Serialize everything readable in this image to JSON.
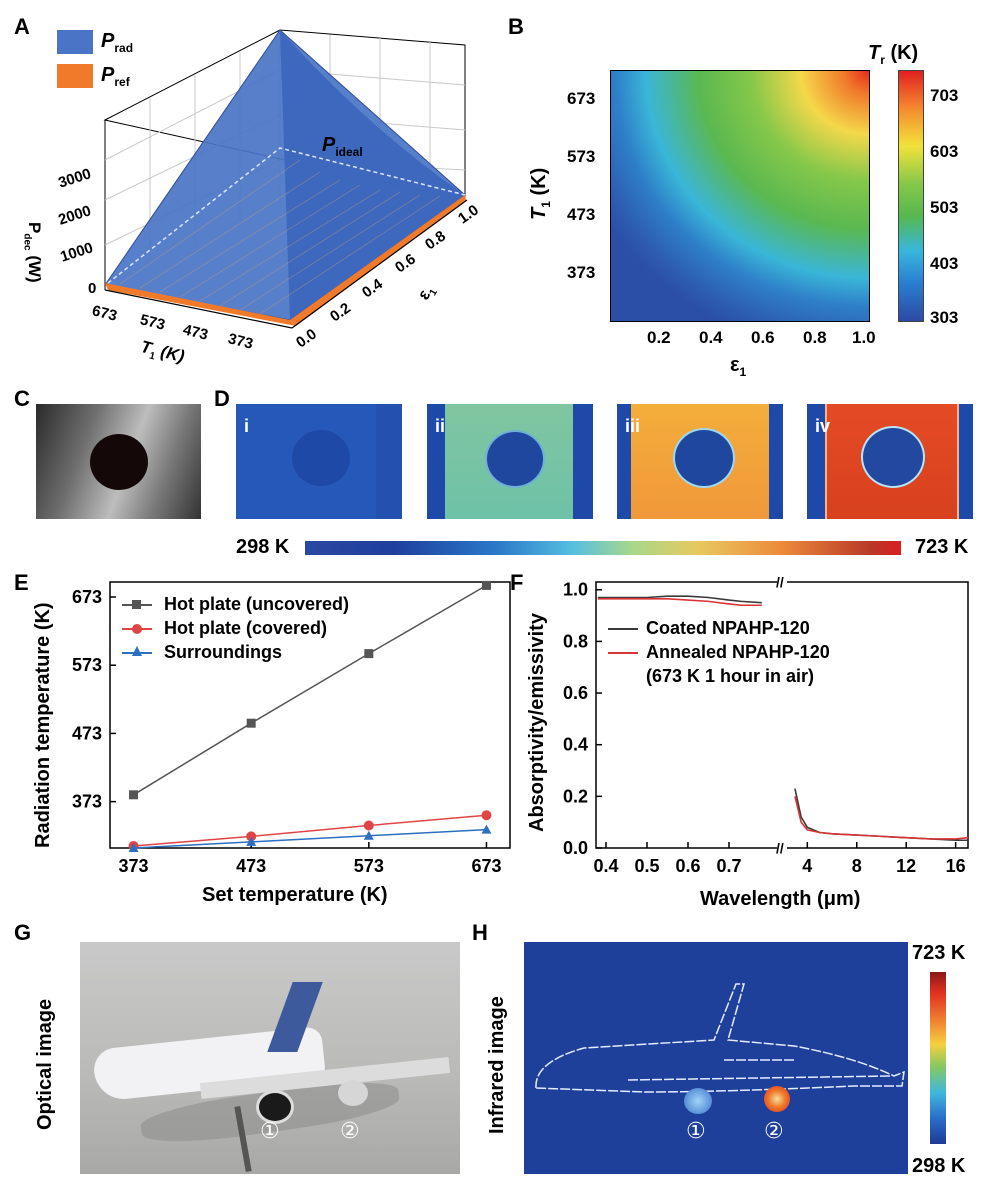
{
  "panels": {
    "A": "A",
    "B": "B",
    "C": "C",
    "D": "D",
    "E": "E",
    "F": "F",
    "G": "G",
    "H": "H"
  },
  "panelA": {
    "legend": [
      {
        "symbol": "P",
        "sub": "rad",
        "color": "#4a74c6"
      },
      {
        "symbol": "P",
        "sub": "ref",
        "color": "#f07a2a"
      }
    ],
    "ideal_label": {
      "symbol": "P",
      "sub": "ideal"
    },
    "zaxis_ticks": [
      "0",
      "1000",
      "2000",
      "3000"
    ],
    "zaxis_label": {
      "symbol": "P",
      "sub": "dec",
      "unit": "(W)"
    },
    "x_ticks": [
      "673",
      "573",
      "473",
      "373"
    ],
    "x_label": {
      "symbol": "T",
      "sub": "1",
      "unit": " (K)"
    },
    "y_ticks": [
      "0.0",
      "0.2",
      "0.4",
      "0.6",
      "0.8",
      "1.0"
    ],
    "y_label": {
      "symbol": "ε",
      "sub": "1"
    }
  },
  "panelB": {
    "title": {
      "symbol": "T",
      "sub": "r",
      "unit": " (K)"
    },
    "colorbar_ticks": [
      "703",
      "603",
      "503",
      "403",
      "303"
    ],
    "y_ticks": [
      "673",
      "573",
      "473",
      "373"
    ],
    "y_label": {
      "symbol": "T",
      "sub": "1",
      "unit": " (K)"
    },
    "x_ticks": [
      "0.2",
      "0.4",
      "0.6",
      "0.8",
      "1.0"
    ],
    "x_label": {
      "symbol": "ε",
      "sub": "1"
    }
  },
  "panelD": {
    "subpanels": [
      "i",
      "ii",
      "iii",
      "iv"
    ],
    "colorbar_min": "298 K",
    "colorbar_max": "723 K"
  },
  "chart_data": [
    {
      "id": "E",
      "type": "line",
      "xlabel": "Set temperature (K)",
      "ylabel": "Radiation temperature (K)",
      "x": [
        373,
        473,
        573,
        673
      ],
      "x_ticks": [
        "373",
        "473",
        "573",
        "673"
      ],
      "y_ticks": [
        "373",
        "473",
        "573",
        "673"
      ],
      "xlim": [
        353,
        693
      ],
      "ylim": [
        305,
        695
      ],
      "series": [
        {
          "name": "Hot plate (uncovered)",
          "color": "#555555",
          "marker": "square",
          "values": [
            383,
            488,
            590,
            690
          ]
        },
        {
          "name": "Hot plate (covered)",
          "color": "#e04545",
          "marker": "circle",
          "values": [
            308,
            322,
            338,
            353
          ]
        },
        {
          "name": "Surroundings",
          "color": "#2a6fc0",
          "marker": "triangle",
          "values": [
            305,
            314,
            323,
            332
          ]
        }
      ]
    },
    {
      "id": "F",
      "type": "line",
      "xlabel": "Wavelength (μm)",
      "ylabel": "Absorptivity/emissivity",
      "x_ticks_left": [
        "0.4",
        "0.5",
        "0.6",
        "0.7"
      ],
      "x_ticks_right": [
        "4",
        "8",
        "12",
        "16"
      ],
      "y_ticks": [
        "0.0",
        "0.2",
        "0.4",
        "0.6",
        "0.8",
        "1.0"
      ],
      "ylim": [
        0,
        1.03
      ],
      "series": [
        {
          "name": "Coated NPAHP-120",
          "color": "#3a3a3a",
          "visible_x": [
            0.38,
            0.45,
            0.5,
            0.55,
            0.6,
            0.65,
            0.7,
            0.73,
            0.78
          ],
          "visible_y": [
            0.97,
            0.97,
            0.97,
            0.975,
            0.975,
            0.97,
            0.96,
            0.955,
            0.95
          ],
          "ir_x": [
            3,
            3.5,
            4,
            5,
            6,
            8,
            10,
            12,
            14,
            16,
            17
          ],
          "ir_y": [
            0.23,
            0.12,
            0.08,
            0.06,
            0.055,
            0.05,
            0.045,
            0.04,
            0.035,
            0.03,
            0.03
          ]
        },
        {
          "name": "Annealed NPAHP-120",
          "note": "(673 K 1 hour in air)",
          "color": "#d83535",
          "visible_x": [
            0.38,
            0.45,
            0.5,
            0.55,
            0.6,
            0.65,
            0.7,
            0.73,
            0.78
          ],
          "visible_y": [
            0.965,
            0.965,
            0.965,
            0.965,
            0.96,
            0.955,
            0.945,
            0.94,
            0.94
          ],
          "ir_x": [
            3,
            3.5,
            4,
            5,
            6,
            8,
            10,
            12,
            14,
            16,
            17
          ],
          "ir_y": [
            0.2,
            0.1,
            0.07,
            0.06,
            0.055,
            0.05,
            0.045,
            0.04,
            0.035,
            0.035,
            0.04
          ]
        }
      ]
    }
  ],
  "panelG": {
    "side_label": "Optical image",
    "markers": [
      "①",
      "②"
    ]
  },
  "panelH": {
    "side_label": "Infrared image",
    "markers": [
      "①",
      "②"
    ],
    "colorbar_max": "723 K",
    "colorbar_min": "298 K"
  }
}
